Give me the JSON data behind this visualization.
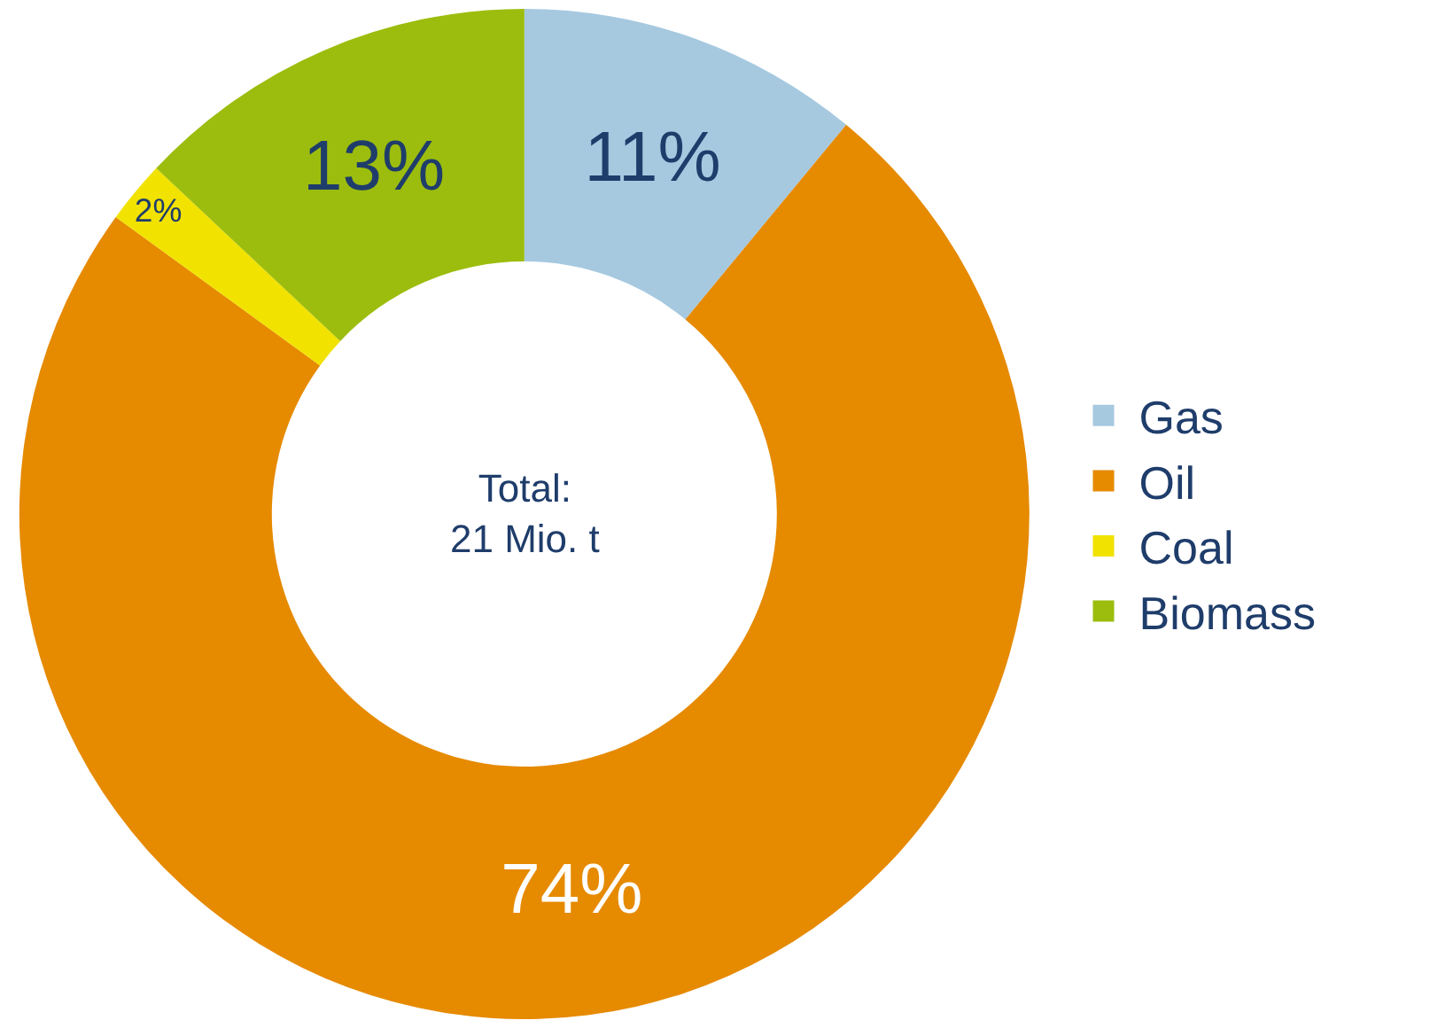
{
  "chart_data": {
    "type": "donut",
    "categories": [
      "Gas",
      "Oil",
      "Coal",
      "Biomass"
    ],
    "values": [
      11,
      74,
      2,
      13
    ],
    "colors": [
      "#a6c9e0",
      "#e68a00",
      "#f2e200",
      "#9cbd0d"
    ],
    "value_labels": [
      "11%",
      "74%",
      "2%",
      "13%"
    ],
    "annotations": [
      "Total:\n21 Mio. t"
    ],
    "legend": "right"
  }
}
